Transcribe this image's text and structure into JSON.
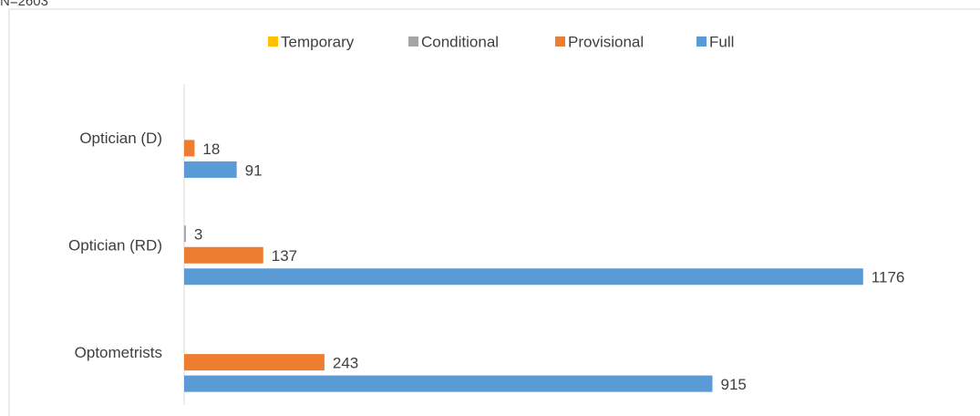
{
  "chart_data": {
    "type": "bar",
    "orientation": "horizontal",
    "note": "N=2603",
    "categories": [
      "Optician (D)",
      "Optician (RD)",
      "Optometrists"
    ],
    "series": [
      {
        "name": "Temporary",
        "color": "#ffc000",
        "values": [
          null,
          null,
          null
        ]
      },
      {
        "name": "Conditional",
        "color": "#a5a5a5",
        "values": [
          null,
          3,
          null
        ]
      },
      {
        "name": "Provisional",
        "color": "#ed7d31",
        "values": [
          18,
          137,
          243
        ]
      },
      {
        "name": "Full",
        "color": "#5b9bd5",
        "values": [
          91,
          1176,
          915
        ]
      }
    ],
    "xlim": [
      0,
      1260
    ],
    "legend": "top"
  }
}
